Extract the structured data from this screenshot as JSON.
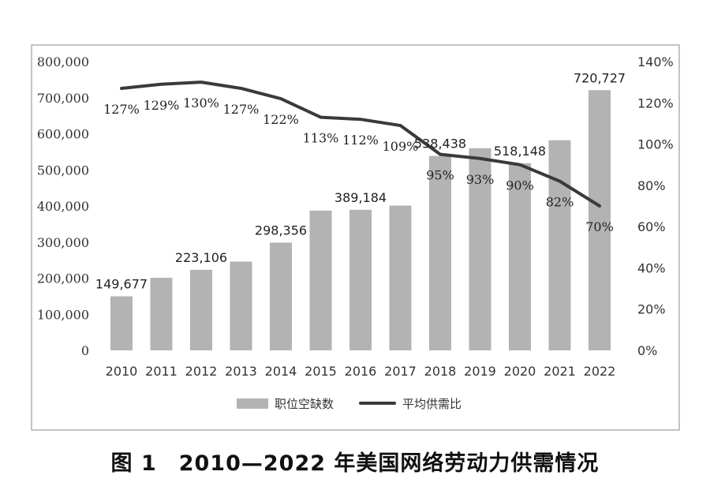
{
  "caption": "图 1　2010—2022 年美国网络劳动力供需情况",
  "chart_data": {
    "type": "bar",
    "categories": [
      "2010",
      "2011",
      "2012",
      "2013",
      "2014",
      "2015",
      "2016",
      "2017",
      "2018",
      "2019",
      "2020",
      "2021",
      "2022"
    ],
    "series": [
      {
        "name": "职位空缺数",
        "type": "bar",
        "axis": "left",
        "color": "#b3b3b3",
        "values": [
          149677,
          201000,
          223106,
          246000,
          298356,
          387000,
          389184,
          401000,
          538438,
          560000,
          518148,
          582000,
          720727
        ],
        "labels": [
          "149,677",
          "",
          "223,106",
          "",
          "298,356",
          "",
          "389,184",
          "",
          "538,438",
          "",
          "518,148",
          "",
          "720,727"
        ]
      },
      {
        "name": "平均供需比",
        "type": "line",
        "axis": "right",
        "color": "#3a3a3a",
        "values": [
          127,
          129,
          130,
          127,
          122,
          113,
          112,
          109,
          95,
          93,
          90,
          82,
          70
        ],
        "labels": [
          "127%",
          "129%",
          "130%",
          "127%",
          "122%",
          "113%",
          "112%",
          "109%",
          "95%",
          "93%",
          "90%",
          "82%",
          "70%"
        ]
      }
    ],
    "y_left": {
      "min": 0,
      "max": 800000,
      "ticks": [
        0,
        100000,
        200000,
        300000,
        400000,
        500000,
        600000,
        700000,
        800000
      ],
      "tick_labels": [
        "0",
        "100,000",
        "200,000",
        "300,000",
        "400,000",
        "500,000",
        "600,000",
        "700,000",
        "800,000"
      ]
    },
    "y_right": {
      "min": 0,
      "max": 140,
      "ticks": [
        0,
        20,
        40,
        60,
        80,
        100,
        120,
        140
      ],
      "tick_labels": [
        "0%",
        "20%",
        "40%",
        "60%",
        "80%",
        "100%",
        "120%",
        "140%"
      ]
    },
    "grid": false,
    "legend_position": "bottom"
  }
}
